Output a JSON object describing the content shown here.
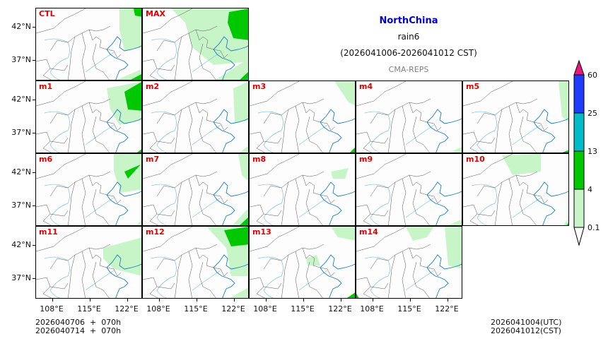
{
  "chart_data": {
    "type": "heatmap",
    "title": "NorthChina",
    "subtitle": "rain6",
    "period": "(2026041006-2026041012 CST)",
    "model": "CMA-REPS",
    "xlabel": "",
    "ylabel": "",
    "x_ticks": [
      "108°E",
      "115°E",
      "122°E"
    ],
    "y_ticks": [
      "42°N",
      "37°N"
    ],
    "panels": [
      "CTL",
      "MAX",
      "m1",
      "m2",
      "m3",
      "m4",
      "m5",
      "m6",
      "m7",
      "m8",
      "m9",
      "m10",
      "m11",
      "m12",
      "m13",
      "m14"
    ],
    "colorbar": {
      "levels": [
        "0.1",
        "4",
        "13",
        "25",
        "60"
      ],
      "colors": [
        "#c8f5c8",
        "#00c800",
        "#00bcc8",
        "#1e3cff"
      ],
      "over_color": "#e6197a",
      "under_color": "#ffffff",
      "extend": "both"
    },
    "notes": "Precipitation shaded mostly in NE (right edge) of domain; MAX, m1, m12 show 4-13 mm area near 122-124°E, 40-44°N"
  },
  "header": {
    "region": "NorthChina",
    "variable": "rain6",
    "period": "(2026041006-2026041012 CST)",
    "model": "CMA-REPS",
    "region_color": "#0000cc",
    "model_color": "#808080"
  },
  "panel_labels": {
    "ctl": "CTL",
    "max": "MAX",
    "m1": "m1",
    "m2": "m2",
    "m3": "m3",
    "m4": "m4",
    "m5": "m5",
    "m6": "m6",
    "m7": "m7",
    "m8": "m8",
    "m9": "m9",
    "m10": "m10",
    "m11": "m11",
    "m12": "m12",
    "m13": "m13",
    "m14": "m14"
  },
  "axes": {
    "lat_hi": "42°N",
    "lat_lo": "37°N",
    "lon_1": "108°E",
    "lon_2": "115°E",
    "lon_3": "122°E"
  },
  "colorbar_labels": {
    "l60": "60",
    "l25": "25",
    "l13": "13",
    "l4": "4",
    "l01": "0.1"
  },
  "footer": {
    "init_line1": "2026040706  +  070h",
    "init_line2": "2026040714  +  070h",
    "valid_utc": "2026041004(UTC)",
    "valid_cst": "2026041012(CST)"
  }
}
